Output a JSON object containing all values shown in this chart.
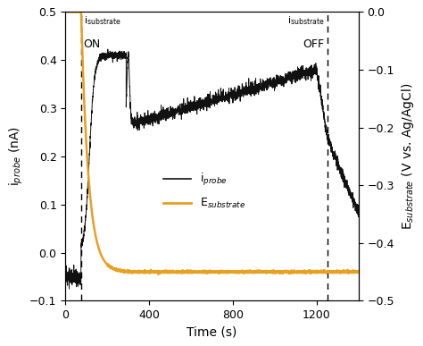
{
  "xlim": [
    0,
    1400
  ],
  "ylim_left": [
    -0.1,
    0.5
  ],
  "ylim_right": [
    -0.5,
    0
  ],
  "yticks_left": [
    -0.1,
    0.0,
    0.1,
    0.2,
    0.3,
    0.4,
    0.5
  ],
  "yticks_right": [
    -0.5,
    -0.4,
    -0.3,
    -0.2,
    -0.1,
    0.0
  ],
  "xticks": [
    0,
    400,
    800,
    1200
  ],
  "xlabel": "Time (s)",
  "ylabel_left": "i$_{probe}$ (nA)",
  "ylabel_right": "E$_{substrate}$ (V vs. Ag/AgCl)",
  "vline1_x": 75,
  "vline2_x": 1250,
  "legend_probe": "i$_{probe}$",
  "legend_substrate": "E$_{substrate}$",
  "line_probe_color": "#111111",
  "line_substrate_color": "#E8A020",
  "background_color": "#ffffff",
  "fig_width": 4.74,
  "fig_height": 3.87,
  "dpi": 100
}
